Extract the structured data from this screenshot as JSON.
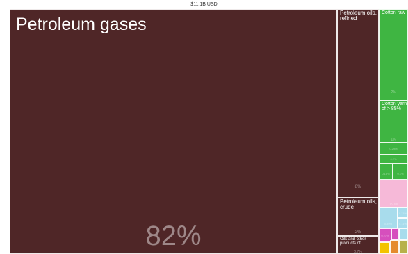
{
  "chart_data": {
    "type": "treemap",
    "total_label": "$11.1B USD",
    "colors": {
      "mineral_fuels": "#4f2627",
      "textiles": "#3fb542",
      "textiles_light": "#6cc96c",
      "pink": "#f6b9d8",
      "light_blue": "#a8dcec",
      "magenta": "#d64fbd",
      "yellow": "#f3c300",
      "orange": "#e58a2b",
      "olive": "#b7b14a"
    },
    "items": [
      {
        "id": "petroleum-gases",
        "label": "Petroleum gases",
        "share_label": "82%",
        "share": 82,
        "color": "mineral_fuels"
      },
      {
        "id": "petroleum-oils-refined",
        "label": "Petroleum oils, refined",
        "share_label": "8%",
        "share": 8,
        "color": "mineral_fuels"
      },
      {
        "id": "petroleum-oils-crude",
        "label": "Petroleum oils, crude",
        "share_label": "2%",
        "share": 2,
        "color": "mineral_fuels"
      },
      {
        "id": "oils-and-other-products",
        "label": "Oils and other products of...",
        "share_label": "0.7%",
        "share": 0.7,
        "color": "mineral_fuels"
      },
      {
        "id": "cotton-raw",
        "label": "Cotton raw",
        "share_label": "2%",
        "share": 2,
        "color": "textiles"
      },
      {
        "id": "cotton-yarn",
        "label": "Cotton yarn of > 85%",
        "share_label": "1%",
        "share": 1,
        "color": "textiles"
      },
      {
        "id": "textile-small-1",
        "label": "",
        "share_label": "0.29%",
        "share": 0.29,
        "color": "textiles"
      },
      {
        "id": "textile-small-2",
        "label": "",
        "share_label": "0.2%",
        "share": 0.2,
        "color": "textiles"
      },
      {
        "id": "textile-small-3",
        "label": "",
        "share_label": "0.15%",
        "share": 0.15,
        "color": "textiles"
      },
      {
        "id": "textile-small-4",
        "label": "",
        "share_label": "0.1%",
        "share": 0.1,
        "color": "textiles"
      },
      {
        "id": "pink-group",
        "label": "",
        "share_label": "0.97%",
        "share": 0.97,
        "color": "pink"
      },
      {
        "id": "blue-1",
        "label": "",
        "share_label": "0.39%",
        "share": 0.39,
        "color": "light_blue"
      },
      {
        "id": "blue-2",
        "label": "",
        "share_label": "0.11%",
        "share": 0.11,
        "color": "light_blue"
      },
      {
        "id": "blue-3",
        "label": "",
        "share_label": "0.11%",
        "share": 0.11,
        "color": "light_blue"
      },
      {
        "id": "blue-4",
        "label": "",
        "share_label": "",
        "share": 0.08,
        "color": "light_blue"
      },
      {
        "id": "magenta-1",
        "label": "",
        "share_label": "0.23%",
        "share": 0.23,
        "color": "magenta"
      },
      {
        "id": "magenta-2",
        "label": "",
        "share_label": "",
        "share": 0.06,
        "color": "magenta"
      },
      {
        "id": "yellow-1",
        "label": "",
        "share_label": "",
        "share": 0.1,
        "color": "yellow"
      },
      {
        "id": "orange-1",
        "label": "",
        "share_label": "",
        "share": 0.08,
        "color": "orange"
      },
      {
        "id": "olive-1",
        "label": "",
        "share_label": "",
        "share": 0.05,
        "color": "olive"
      }
    ]
  }
}
